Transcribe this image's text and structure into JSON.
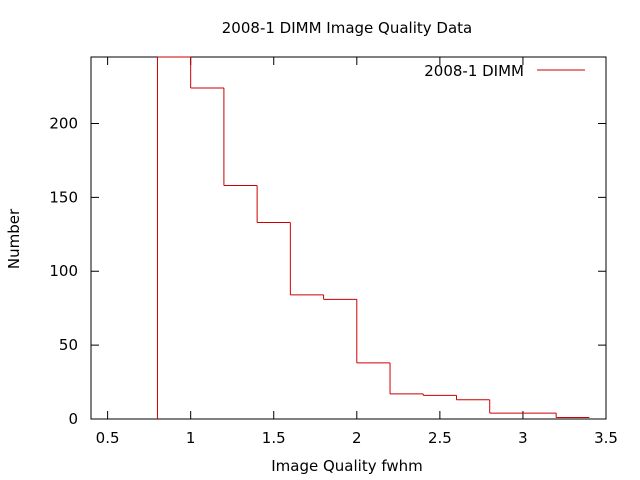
{
  "chart_data": {
    "type": "histogram-step",
    "title": "2008-1 DIMM Image Quality Data",
    "xlabel": "Image Quality fwhm",
    "ylabel": "Number",
    "xlim": [
      0.4,
      3.5
    ],
    "ylim": [
      0,
      245
    ],
    "xticks": [
      0.5,
      1,
      1.5,
      2,
      2.5,
      3,
      3.5
    ],
    "xtick_labels": [
      "0.5",
      "1",
      "1.5",
      "2",
      "2.5",
      "3",
      "3.5"
    ],
    "yticks": [
      0,
      50,
      100,
      150,
      200
    ],
    "ytick_labels": [
      "0",
      "50",
      "100",
      "150",
      "200"
    ],
    "grid": false,
    "legend": {
      "position": "top-right"
    },
    "series": [
      {
        "name": "2008-1 DIMM",
        "color": "#cc0000",
        "bins": [
          {
            "x0": 0.8,
            "x1": 1.0,
            "value": 245
          },
          {
            "x0": 1.0,
            "x1": 1.2,
            "value": 224
          },
          {
            "x0": 1.2,
            "x1": 1.4,
            "value": 158
          },
          {
            "x0": 1.4,
            "x1": 1.6,
            "value": 133
          },
          {
            "x0": 1.6,
            "x1": 1.8,
            "value": 84
          },
          {
            "x0": 1.8,
            "x1": 2.0,
            "value": 81
          },
          {
            "x0": 2.0,
            "x1": 2.2,
            "value": 38
          },
          {
            "x0": 2.2,
            "x1": 2.4,
            "value": 17
          },
          {
            "x0": 2.4,
            "x1": 2.6,
            "value": 16
          },
          {
            "x0": 2.6,
            "x1": 2.8,
            "value": 13
          },
          {
            "x0": 2.8,
            "x1": 3.2,
            "value": 4
          },
          {
            "x0": 3.2,
            "x1": 3.4,
            "value": 1
          }
        ]
      }
    ]
  }
}
